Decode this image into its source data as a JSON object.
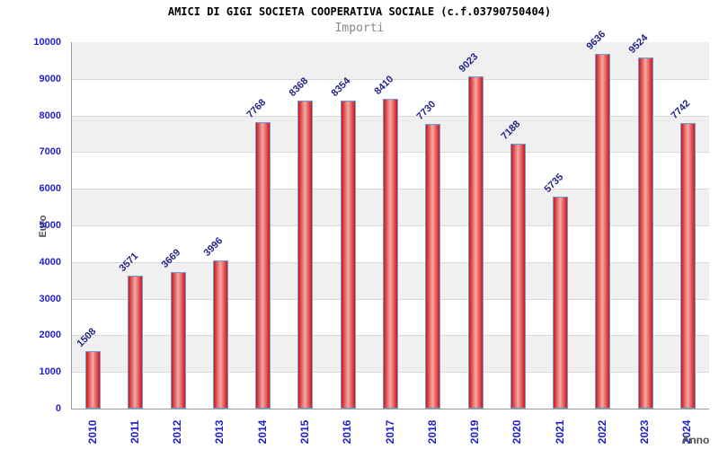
{
  "chart_data": {
    "type": "bar",
    "title": "AMICI DI GIGI SOCIETA COOPERATIVA SOCIALE (c.f.03790750404)",
    "subtitle": "Importi",
    "xlabel": "Anno",
    "ylabel": "Euro",
    "categories": [
      "2010",
      "2011",
      "2012",
      "2013",
      "2014",
      "2015",
      "2016",
      "2017",
      "2018",
      "2019",
      "2020",
      "2021",
      "2022",
      "2023",
      "2024"
    ],
    "values": [
      1508,
      3571,
      3669,
      3996,
      7768,
      8368,
      8354,
      8410,
      7730,
      9023,
      7188,
      5735,
      9636,
      9524,
      7742
    ],
    "ylim": [
      0,
      10000
    ],
    "ytick_step": 1000,
    "grid": true,
    "legend_position": "none",
    "band_fill": "alternating horizontal stripes",
    "colors": {
      "bar_edge": "#cf1616",
      "bar_center": "#f5a8a8",
      "bar_border": "#6b9fd6",
      "axis_tick_label": "#2222cc",
      "value_label": "#222288",
      "band": "#f0f0f0",
      "grid_line": "#d9d9d9",
      "axis_line": "#999999",
      "title": "#000000",
      "subtitle": "#878787",
      "axis_title": "#4d4d4d"
    }
  }
}
